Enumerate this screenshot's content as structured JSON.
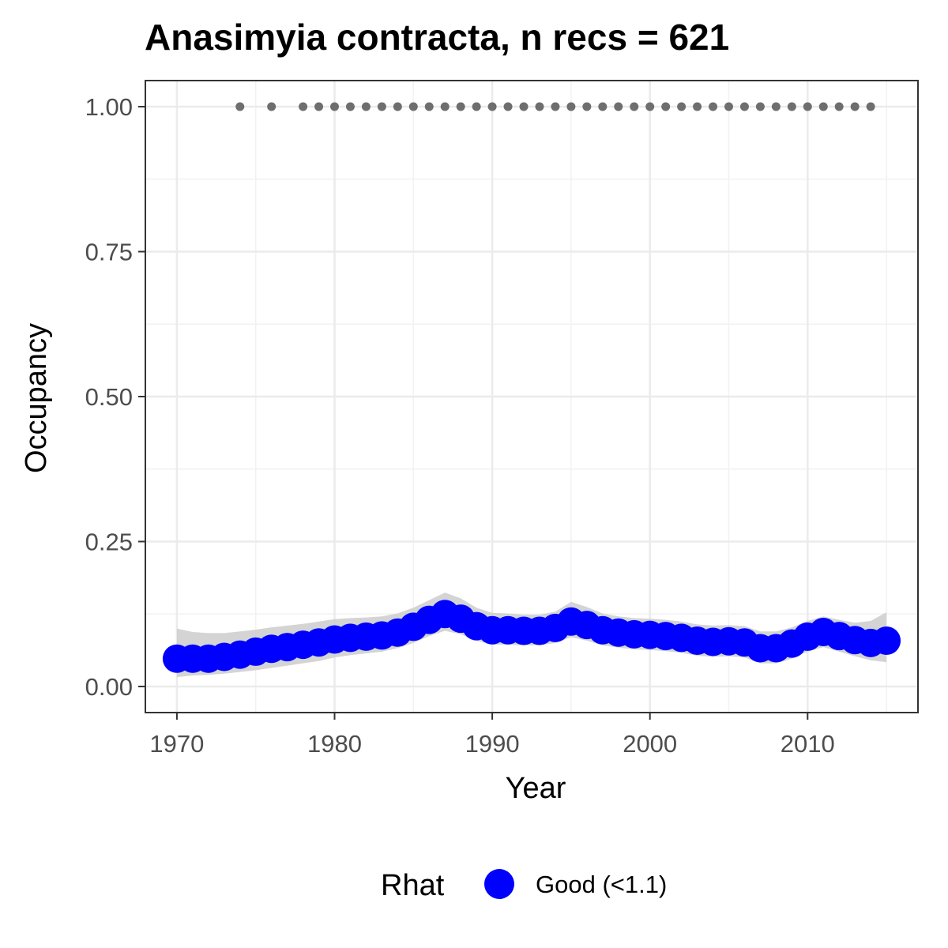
{
  "chart_data": {
    "type": "line",
    "title": "Anasimyia contracta, n recs = 621",
    "xlabel": "Year",
    "ylabel": "Occupancy",
    "xlim": [
      1968,
      2017
    ],
    "ylim": [
      -0.045,
      1.045
    ],
    "x_ticks": [
      1970,
      1980,
      1990,
      2000,
      2010
    ],
    "x_tick_labels": [
      "1970",
      "1980",
      "1990",
      "2000",
      "2010"
    ],
    "y_ticks": [
      0,
      0.25,
      0.5,
      0.75,
      1.0
    ],
    "y_tick_labels": [
      "0.00",
      "0.25",
      "0.50",
      "0.75",
      "1.00"
    ],
    "grid": true,
    "legend": {
      "position": "bottom",
      "title": "Rhat",
      "entries": [
        {
          "label": "Good (<1.1)",
          "color": "#0000ff"
        }
      ]
    },
    "series": [
      {
        "name": "Good (<1.1)",
        "color": "#0000ff",
        "x": [
          1970,
          1971,
          1972,
          1973,
          1974,
          1975,
          1976,
          1977,
          1978,
          1979,
          1980,
          1981,
          1982,
          1983,
          1984,
          1985,
          1986,
          1987,
          1988,
          1989,
          1990,
          1991,
          1992,
          1993,
          1994,
          1995,
          1996,
          1997,
          1998,
          1999,
          2000,
          2001,
          2002,
          2003,
          2004,
          2005,
          2006,
          2007,
          2008,
          2009,
          2010,
          2011,
          2012,
          2013,
          2014,
          2015
        ],
        "y": [
          0.048,
          0.048,
          0.048,
          0.051,
          0.055,
          0.06,
          0.065,
          0.068,
          0.072,
          0.076,
          0.081,
          0.084,
          0.086,
          0.088,
          0.093,
          0.103,
          0.115,
          0.125,
          0.117,
          0.104,
          0.097,
          0.097,
          0.096,
          0.096,
          0.101,
          0.112,
          0.106,
          0.097,
          0.093,
          0.09,
          0.089,
          0.087,
          0.084,
          0.079,
          0.077,
          0.078,
          0.076,
          0.066,
          0.066,
          0.074,
          0.086,
          0.094,
          0.087,
          0.08,
          0.075,
          0.079
        ],
        "lower": [
          0.016,
          0.019,
          0.02,
          0.022,
          0.025,
          0.028,
          0.032,
          0.036,
          0.04,
          0.044,
          0.05,
          0.054,
          0.057,
          0.06,
          0.066,
          0.075,
          0.087,
          0.096,
          0.09,
          0.079,
          0.072,
          0.072,
          0.071,
          0.071,
          0.075,
          0.085,
          0.079,
          0.071,
          0.067,
          0.064,
          0.063,
          0.061,
          0.058,
          0.053,
          0.051,
          0.052,
          0.05,
          0.04,
          0.04,
          0.048,
          0.06,
          0.068,
          0.06,
          0.052,
          0.045,
          0.042
        ],
        "upper": [
          0.1,
          0.094,
          0.092,
          0.092,
          0.095,
          0.098,
          0.102,
          0.105,
          0.108,
          0.112,
          0.116,
          0.118,
          0.119,
          0.121,
          0.126,
          0.136,
          0.149,
          0.162,
          0.152,
          0.136,
          0.127,
          0.126,
          0.124,
          0.124,
          0.129,
          0.146,
          0.137,
          0.126,
          0.121,
          0.118,
          0.117,
          0.115,
          0.112,
          0.107,
          0.105,
          0.106,
          0.104,
          0.095,
          0.095,
          0.102,
          0.113,
          0.121,
          0.115,
          0.11,
          0.113,
          0.128
        ]
      },
      {
        "name": "",
        "color": "#6e6e6e",
        "x": [
          1974,
          1976,
          1978,
          1979,
          1980,
          1981,
          1982,
          1983,
          1984,
          1985,
          1986,
          1987,
          1988,
          1989,
          1990,
          1991,
          1992,
          1993,
          1994,
          1995,
          1996,
          1997,
          1998,
          1999,
          2000,
          2001,
          2002,
          2003,
          2004,
          2005,
          2006,
          2007,
          2008,
          2009,
          2010,
          2011,
          2012,
          2013,
          2014
        ],
        "y": [
          1,
          1,
          1,
          1,
          1,
          1,
          1,
          1,
          1,
          1,
          1,
          1,
          1,
          1,
          1,
          1,
          1,
          1,
          1,
          1,
          1,
          1,
          1,
          1,
          1,
          1,
          1,
          1,
          1,
          1,
          1,
          1,
          1,
          1,
          1,
          1,
          1,
          1,
          1
        ]
      }
    ]
  }
}
